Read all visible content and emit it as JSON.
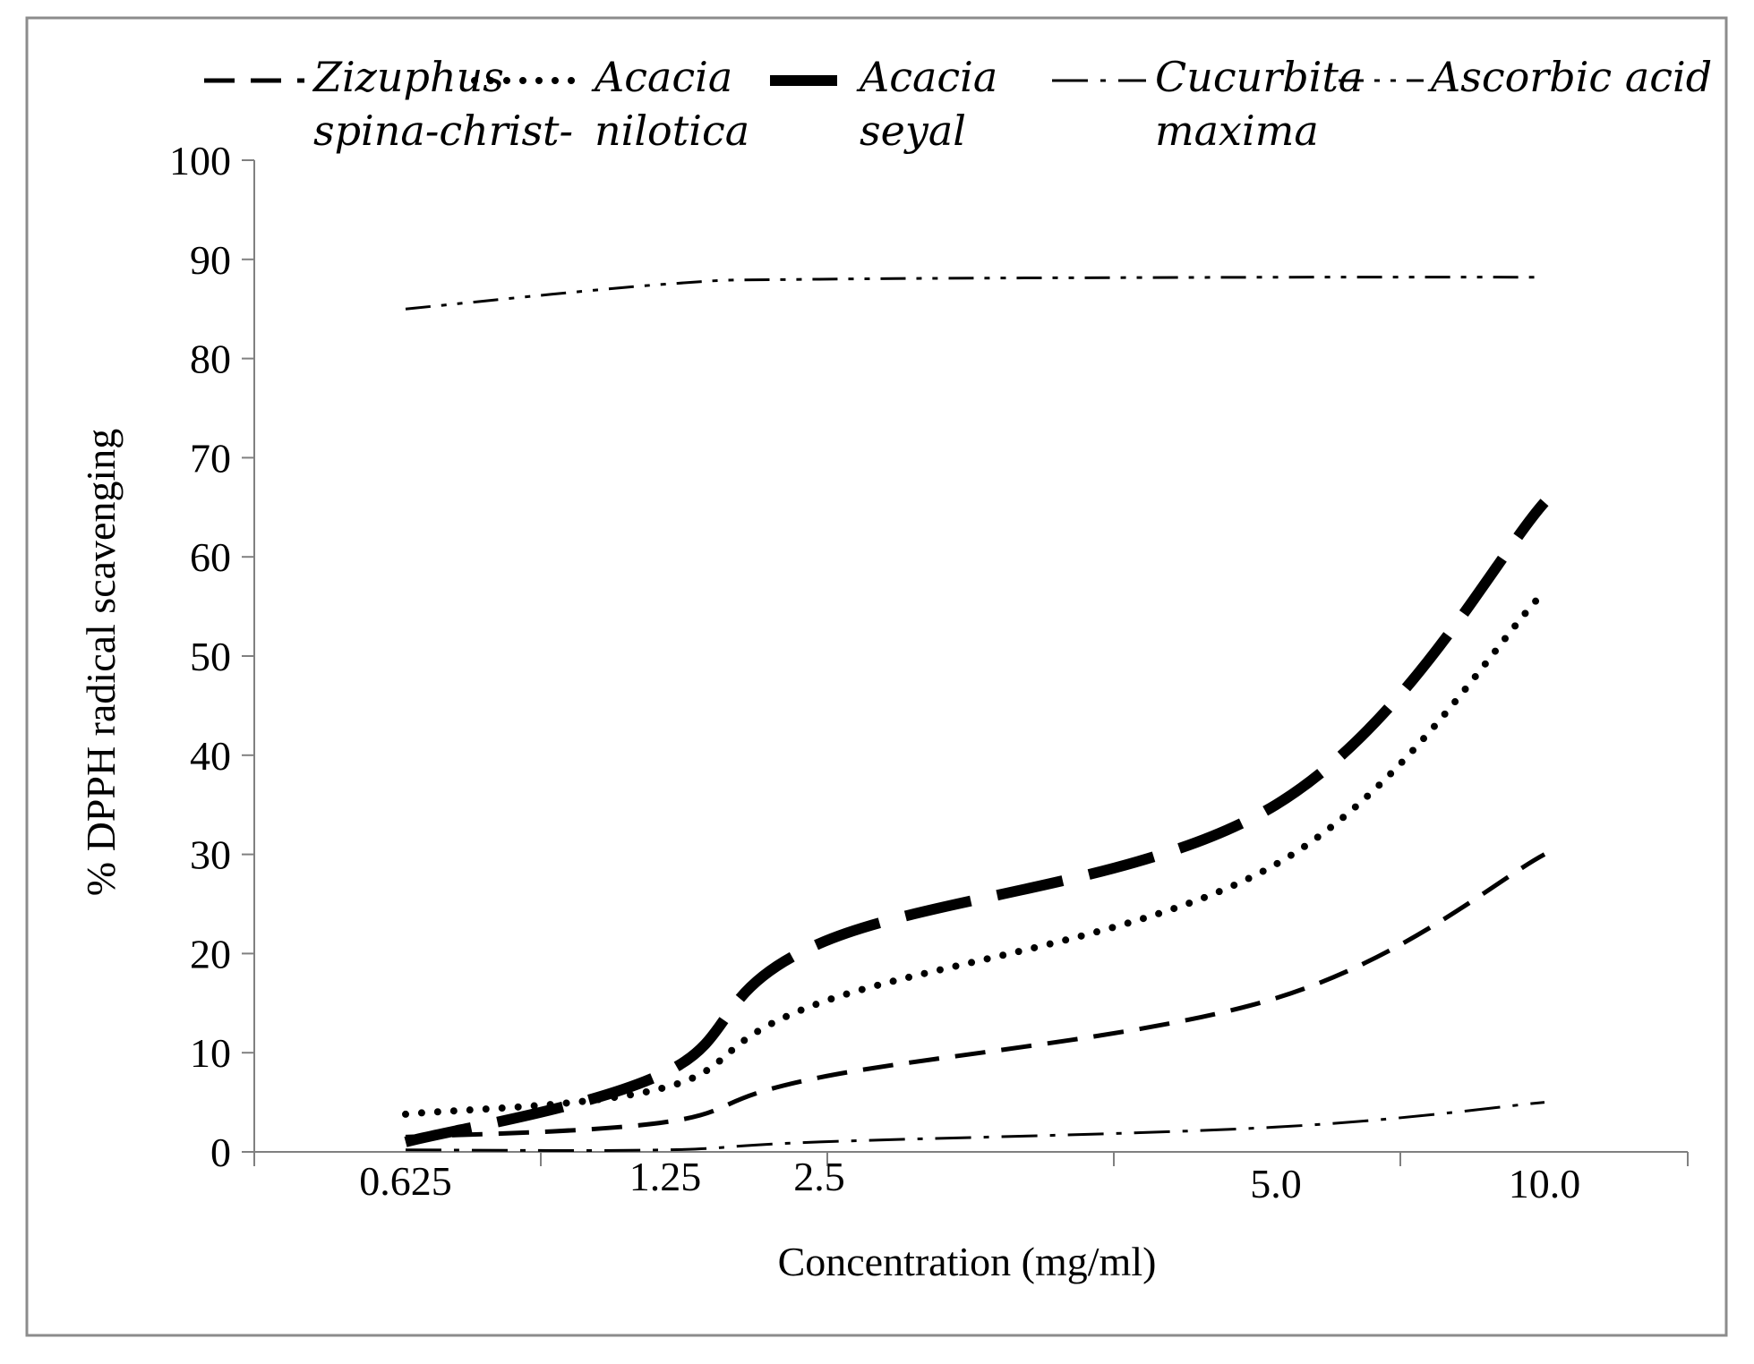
{
  "chart_data": {
    "type": "line",
    "title": "",
    "xlabel": "Concentration  (mg/ml)",
    "ylabel": "% DPPH radical  scavenging",
    "categories": [
      "0.625",
      "1.25",
      "2.5",
      "5.0",
      "10.0"
    ],
    "x": [
      0.625,
      1.25,
      2.5,
      5.0,
      10.0
    ],
    "ylim": [
      0,
      100
    ],
    "yticks": [
      "0",
      "10",
      "20",
      "30",
      "40",
      "50",
      "60",
      "70",
      "80",
      "90",
      "100"
    ],
    "legend_position": "top",
    "series": [
      {
        "name": "Zizuphus spina-christ-",
        "name_lines": [
          "Zizuphus",
          "spina-christ-"
        ],
        "style": "dash",
        "values": [
          1.5,
          3.0,
          7.5,
          15.5,
          30.0
        ]
      },
      {
        "name": "Acacia nilotica",
        "name_lines": [
          "Acacia",
          "nilotica"
        ],
        "style": "dot",
        "values": [
          3.8,
          6.5,
          15.0,
          29.0,
          56.5
        ]
      },
      {
        "name": "Acacia seyal",
        "name_lines": [
          "Acacia",
          "seyal"
        ],
        "style": "longdash-thick",
        "values": [
          1.0,
          8.0,
          21.0,
          35.0,
          65.5
        ]
      },
      {
        "name": "Cucurbita maxima",
        "name_lines": [
          "Cucurbita",
          "maxima"
        ],
        "style": "dashdot",
        "values": [
          0.2,
          0.2,
          1.0,
          2.5,
          5.0
        ]
      },
      {
        "name": "Ascorbic acid",
        "name_lines": [
          "Ascorbic acid"
        ],
        "style": "dashdotdot",
        "values": [
          85.0,
          87.5,
          88.0,
          88.2,
          88.2
        ]
      }
    ]
  }
}
